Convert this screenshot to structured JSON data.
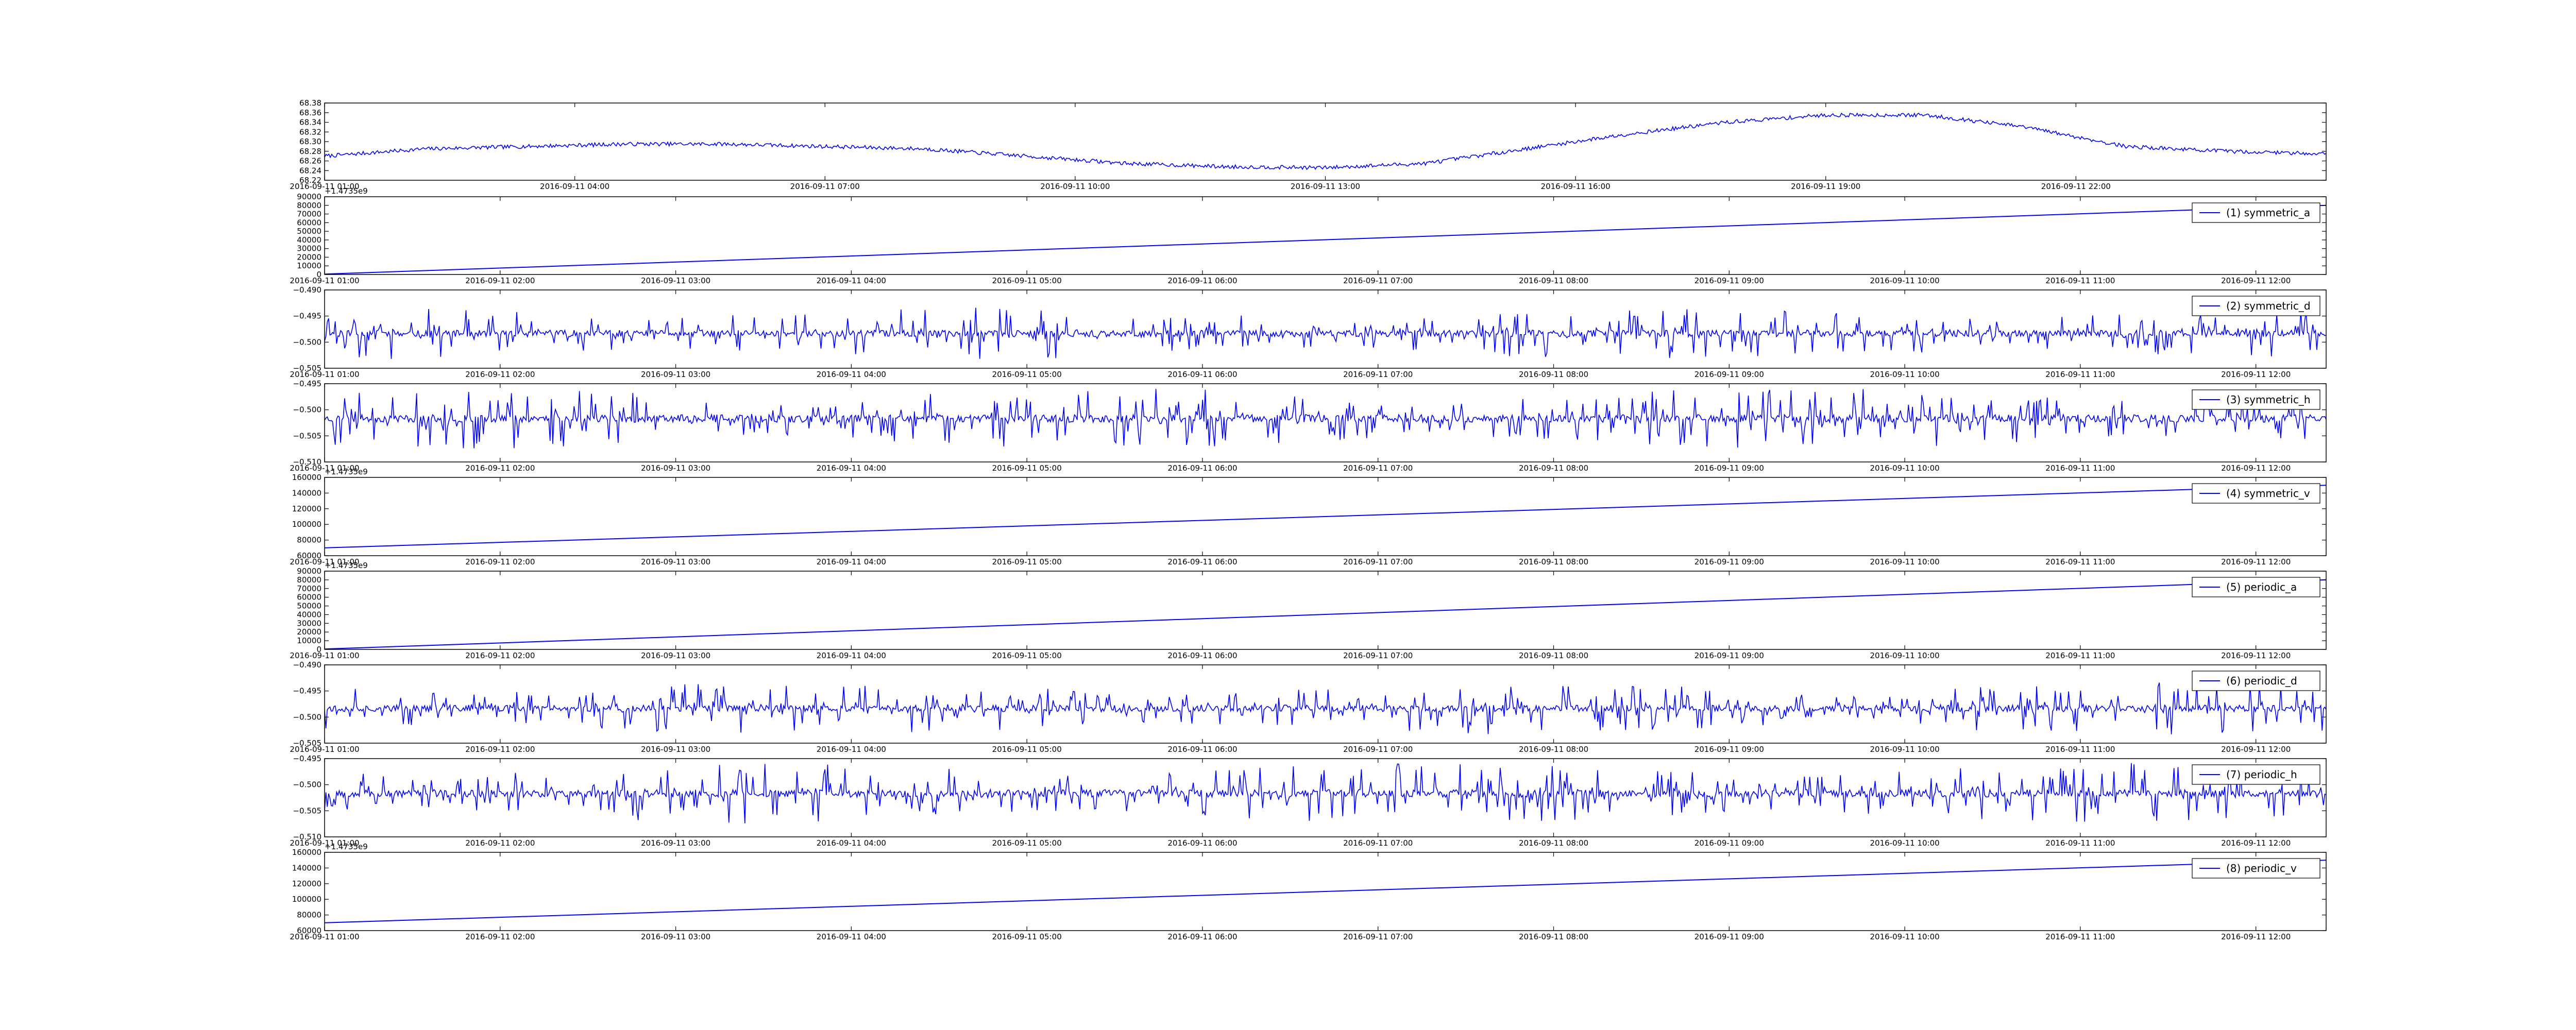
{
  "line_color": "#0000ff",
  "chart_data": [
    {
      "type": "line",
      "legend": "",
      "offset_label": "",
      "x_ticks": [
        "2016-09-11 01:00",
        "2016-09-11 04:00",
        "2016-09-11 07:00",
        "2016-09-11 10:00",
        "2016-09-11 13:00",
        "2016-09-11 16:00",
        "2016-09-11 19:00",
        "2016-09-11 22:00"
      ],
      "y_ticks": [
        "68.22",
        "68.24",
        "68.26",
        "68.28",
        "68.30",
        "68.32",
        "68.34",
        "68.36",
        "68.38"
      ],
      "ylim": [
        68.22,
        68.38
      ],
      "series": [
        {
          "shape": "noisy",
          "x": [
            0,
            0.05,
            0.1,
            0.15,
            0.2,
            0.25,
            0.3,
            0.35,
            0.4,
            0.45,
            0.5,
            0.55,
            0.6,
            0.65,
            0.7,
            0.75,
            0.8,
            0.85,
            0.9,
            0.95,
            1.0
          ],
          "y": [
            68.27,
            68.285,
            68.29,
            68.295,
            68.295,
            68.29,
            68.285,
            68.27,
            68.255,
            68.248,
            68.246,
            68.255,
            68.285,
            68.315,
            68.34,
            68.355,
            68.355,
            68.33,
            68.29,
            68.28,
            68.275
          ],
          "noise": 0.004
        }
      ]
    },
    {
      "type": "line",
      "legend": "(1) symmetric_a",
      "offset_label": "+1.4735e9",
      "x_ticks": [
        "2016-09-11 01:00",
        "2016-09-11 02:00",
        "2016-09-11 03:00",
        "2016-09-11 04:00",
        "2016-09-11 05:00",
        "2016-09-11 06:00",
        "2016-09-11 07:00",
        "2016-09-11 08:00",
        "2016-09-11 09:00",
        "2016-09-11 10:00",
        "2016-09-11 11:00",
        "2016-09-11 12:00"
      ],
      "y_ticks": [
        "0",
        "10000",
        "20000",
        "30000",
        "40000",
        "50000",
        "60000",
        "70000",
        "80000",
        "90000"
      ],
      "ylim": [
        0,
        90000
      ],
      "series": [
        {
          "shape": "linear",
          "y": [
            500,
            80000
          ]
        }
      ]
    },
    {
      "type": "line",
      "legend": "(2) symmetric_d",
      "offset_label": "",
      "x_ticks": [
        "2016-09-11 01:00",
        "2016-09-11 02:00",
        "2016-09-11 03:00",
        "2016-09-11 04:00",
        "2016-09-11 05:00",
        "2016-09-11 06:00",
        "2016-09-11 07:00",
        "2016-09-11 08:00",
        "2016-09-11 09:00",
        "2016-09-11 10:00",
        "2016-09-11 11:00",
        "2016-09-11 12:00"
      ],
      "y_ticks": [
        "−0.505",
        "−0.500",
        "−0.495",
        "−0.490"
      ],
      "ylim": [
        -0.508,
        -0.49
      ],
      "series": [
        {
          "shape": "spiky",
          "center": -0.5,
          "amp": 0.006,
          "seed": 11
        }
      ]
    },
    {
      "type": "line",
      "legend": "(3) symmetric_h",
      "offset_label": "",
      "x_ticks": [
        "2016-09-11 01:00",
        "2016-09-11 02:00",
        "2016-09-11 03:00",
        "2016-09-11 04:00",
        "2016-09-11 05:00",
        "2016-09-11 06:00",
        "2016-09-11 07:00",
        "2016-09-11 08:00",
        "2016-09-11 09:00",
        "2016-09-11 10:00",
        "2016-09-11 11:00",
        "2016-09-11 12:00"
      ],
      "y_ticks": [
        "−0.510",
        "−0.505",
        "−0.500",
        "−0.495"
      ],
      "ylim": [
        -0.51,
        -0.492
      ],
      "series": [
        {
          "shape": "spiky",
          "center": -0.5,
          "amp": 0.007,
          "seed": 23
        }
      ]
    },
    {
      "type": "line",
      "legend": "(4) symmetric_v",
      "offset_label": "+1.4735e9",
      "x_ticks": [
        "2016-09-11 01:00",
        "2016-09-11 02:00",
        "2016-09-11 03:00",
        "2016-09-11 04:00",
        "2016-09-11 05:00",
        "2016-09-11 06:00",
        "2016-09-11 07:00",
        "2016-09-11 08:00",
        "2016-09-11 09:00",
        "2016-09-11 10:00",
        "2016-09-11 11:00",
        "2016-09-11 12:00"
      ],
      "y_ticks": [
        "60000",
        "80000",
        "100000",
        "120000",
        "140000",
        "160000"
      ],
      "ylim": [
        60000,
        160000
      ],
      "series": [
        {
          "shape": "linear",
          "y": [
            70000,
            150000
          ]
        }
      ]
    },
    {
      "type": "line",
      "legend": "(5) periodic_a",
      "offset_label": "+1.4735e9",
      "x_ticks": [
        "2016-09-11 01:00",
        "2016-09-11 02:00",
        "2016-09-11 03:00",
        "2016-09-11 04:00",
        "2016-09-11 05:00",
        "2016-09-11 06:00",
        "2016-09-11 07:00",
        "2016-09-11 08:00",
        "2016-09-11 09:00",
        "2016-09-11 10:00",
        "2016-09-11 11:00",
        "2016-09-11 12:00"
      ],
      "y_ticks": [
        "0",
        "10000",
        "20000",
        "30000",
        "40000",
        "50000",
        "60000",
        "70000",
        "80000",
        "90000"
      ],
      "ylim": [
        0,
        90000
      ],
      "series": [
        {
          "shape": "linear",
          "y": [
            500,
            80000
          ]
        }
      ]
    },
    {
      "type": "line",
      "legend": "(6) periodic_d",
      "offset_label": "",
      "x_ticks": [
        "2016-09-11 01:00",
        "2016-09-11 02:00",
        "2016-09-11 03:00",
        "2016-09-11 04:00",
        "2016-09-11 05:00",
        "2016-09-11 06:00",
        "2016-09-11 07:00",
        "2016-09-11 08:00",
        "2016-09-11 09:00",
        "2016-09-11 10:00",
        "2016-09-11 11:00",
        "2016-09-11 12:00"
      ],
      "y_ticks": [
        "−0.505",
        "−0.500",
        "−0.495",
        "−0.490"
      ],
      "ylim": [
        -0.508,
        -0.49
      ],
      "series": [
        {
          "shape": "spiky",
          "center": -0.5,
          "amp": 0.006,
          "seed": 37
        }
      ]
    },
    {
      "type": "line",
      "legend": "(7) periodic_h",
      "offset_label": "",
      "x_ticks": [
        "2016-09-11 01:00",
        "2016-09-11 02:00",
        "2016-09-11 03:00",
        "2016-09-11 04:00",
        "2016-09-11 05:00",
        "2016-09-11 06:00",
        "2016-09-11 07:00",
        "2016-09-11 08:00",
        "2016-09-11 09:00",
        "2016-09-11 10:00",
        "2016-09-11 11:00",
        "2016-09-11 12:00"
      ],
      "y_ticks": [
        "−0.510",
        "−0.505",
        "−0.500",
        "−0.495"
      ],
      "ylim": [
        -0.51,
        -0.492
      ],
      "series": [
        {
          "shape": "spiky",
          "center": -0.5,
          "amp": 0.007,
          "seed": 53
        }
      ]
    },
    {
      "type": "line",
      "legend": "(8) periodic_v",
      "offset_label": "+1.4735e9",
      "x_ticks": [
        "2016-09-11 01:00",
        "2016-09-11 02:00",
        "2016-09-11 03:00",
        "2016-09-11 04:00",
        "2016-09-11 05:00",
        "2016-09-11 06:00",
        "2016-09-11 07:00",
        "2016-09-11 08:00",
        "2016-09-11 09:00",
        "2016-09-11 10:00",
        "2016-09-11 11:00",
        "2016-09-11 12:00"
      ],
      "y_ticks": [
        "60000",
        "80000",
        "100000",
        "120000",
        "140000",
        "160000"
      ],
      "ylim": [
        60000,
        160000
      ],
      "series": [
        {
          "shape": "linear",
          "y": [
            70000,
            150000
          ]
        }
      ]
    }
  ]
}
